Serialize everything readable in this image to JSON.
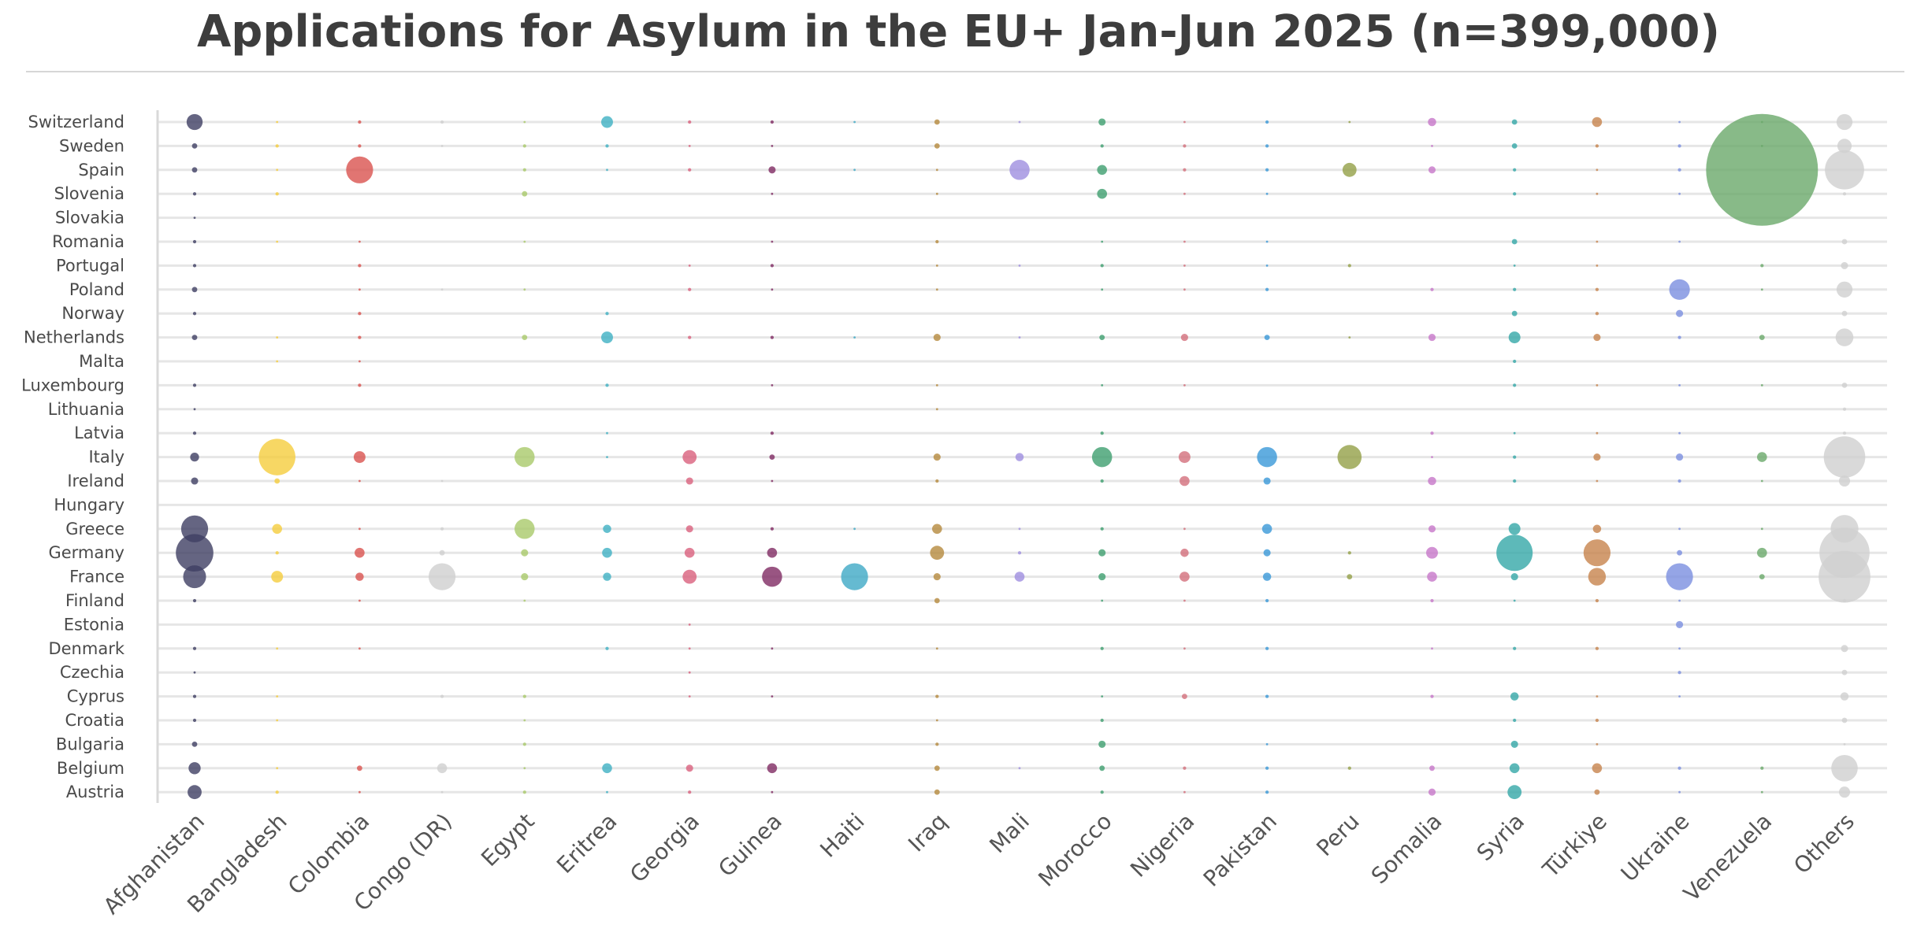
{
  "chart_data": {
    "type": "scatter",
    "title": "Applications for Asylum in the EU+ Jan-Jun 2025 (n=399,000)",
    "xlabel": "",
    "ylabel": "",
    "grid": true,
    "legend": "none",
    "size_unit": "relative bubble area (0-1, Venezuela in Spain = 1)",
    "x_categories": [
      "Afghanistan",
      "Bangladesh",
      "Colombia",
      "Congo (DR)",
      "Egypt",
      "Eritrea",
      "Georgia",
      "Guinea",
      "Haiti",
      "Iraq",
      "Mali",
      "Morocco",
      "Nigeria",
      "Pakistan",
      "Peru",
      "Somalia",
      "Syria",
      "Türkiye",
      "Ukraine",
      "Venezuela",
      "Others"
    ],
    "y_categories": [
      "Switzerland",
      "Sweden",
      "Spain",
      "Slovenia",
      "Slovakia",
      "Romania",
      "Portugal",
      "Poland",
      "Norway",
      "Netherlands",
      "Malta",
      "Luxembourg",
      "Lithuania",
      "Latvia",
      "Italy",
      "Ireland",
      "Hungary",
      "Greece",
      "Germany",
      "France",
      "Finland",
      "Estonia",
      "Denmark",
      "Czechia",
      "Cyprus",
      "Croatia",
      "Bulgaria",
      "Belgium",
      "Austria"
    ],
    "series": [
      {
        "name": "Afghanistan",
        "color": "#3f3f63",
        "values": [
          0.0205,
          0.0023,
          0.0023,
          0.0009,
          0.0002,
          0.0009,
          0.0009,
          0.0023,
          0.0009,
          0.0023,
          0,
          0.0009,
          0.0002,
          0.0009,
          0.0063,
          0.0041,
          0,
          0.0581,
          0.1125,
          0.0419,
          0.0009,
          0,
          0.0009,
          0.0002,
          0.0009,
          0.0009,
          0.0023,
          0.0117,
          0.0157
        ]
      },
      {
        "name": "Bangladesh",
        "color": "#f5cd3d",
        "values": [
          0.0002,
          0.0009,
          0.0002,
          0.0009,
          0,
          0.0002,
          0,
          0,
          0,
          0.0002,
          0.0002,
          0,
          0,
          0,
          0.107,
          0.0023,
          0,
          0.0079,
          0.0009,
          0.0111,
          0,
          0,
          0.0002,
          0,
          0.0002,
          0.0002,
          0,
          0.0002,
          0.0009
        ]
      },
      {
        "name": "Colombia",
        "color": "#d9534f",
        "values": [
          0.0009,
          0.0009,
          0.0581,
          0,
          0,
          0.0002,
          0.0009,
          0.0002,
          0.0009,
          0.0009,
          0.0002,
          0.0009,
          0,
          0,
          0.0111,
          0.0002,
          0,
          0.0002,
          0.0079,
          0.0055,
          0.0002,
          0,
          0.0002,
          0,
          0,
          0,
          0,
          0.0023,
          0.0002
        ]
      },
      {
        "name": "Congo (DR)",
        "color": "#cfcfcf",
        "values": [
          0.0009,
          0.0002,
          0,
          0,
          0,
          0,
          0,
          0.0002,
          0,
          0,
          0,
          0,
          0,
          0,
          0,
          0.0002,
          0,
          0.0009,
          0.0023,
          0.0581,
          0,
          0,
          0,
          0,
          0.0009,
          0,
          0,
          0.0079,
          0.0002
        ]
      },
      {
        "name": "Egypt",
        "color": "#a9c96a",
        "values": [
          0.0002,
          0.0009,
          0.0009,
          0.0023,
          0,
          0.0002,
          0,
          0.0002,
          0,
          0.0023,
          0,
          0,
          0,
          0,
          0.0323,
          0,
          0,
          0.0323,
          0.0041,
          0.0041,
          0.0002,
          0,
          0,
          0,
          0.0009,
          0.0002,
          0.0009,
          0.0002,
          0.0009
        ]
      },
      {
        "name": "Eritrea",
        "color": "#3fb0c3",
        "values": [
          0.0111,
          0.0009,
          0.0002,
          0,
          0,
          0,
          0,
          0,
          0.0009,
          0.0111,
          0,
          0.0009,
          0,
          0.0002,
          0.0002,
          0,
          0,
          0.0055,
          0.0079,
          0.0055,
          0,
          0,
          0.0009,
          0,
          0,
          0,
          0,
          0.0079,
          0.0002
        ]
      },
      {
        "name": "Georgia",
        "color": "#d9607d",
        "values": [
          0.0009,
          0.0002,
          0.0009,
          0,
          0,
          0,
          0.0002,
          0.0009,
          0,
          0.0009,
          0,
          0,
          0,
          0,
          0.0157,
          0.0041,
          0,
          0.0041,
          0.0079,
          0.0157,
          0,
          0.0002,
          0.0002,
          0.0002,
          0.0002,
          0,
          0,
          0.0041,
          0.0009
        ]
      },
      {
        "name": "Guinea",
        "color": "#7f2b63",
        "values": [
          0.0009,
          0.0002,
          0.0041,
          0.0002,
          0,
          0.0002,
          0.0009,
          0.0002,
          0,
          0.0009,
          0,
          0.0002,
          0,
          0.0009,
          0.0023,
          0.0002,
          0,
          0.0009,
          0.0079,
          0.0323,
          0,
          0,
          0.0002,
          0,
          0.0002,
          0,
          0,
          0.0079,
          0.0002
        ]
      },
      {
        "name": "Haiti",
        "color": "#3fa9c6",
        "values": [
          0.0002,
          0,
          0.0002,
          0,
          0,
          0,
          0,
          0,
          0,
          0.0002,
          0,
          0,
          0,
          0,
          0,
          0,
          0,
          0.0002,
          0,
          0.0581,
          0,
          0,
          0,
          0,
          0,
          0,
          0,
          0,
          0
        ]
      },
      {
        "name": "Iraq",
        "color": "#b58a3d",
        "values": [
          0.0023,
          0.0023,
          0.0002,
          0.0002,
          0,
          0.0009,
          0.0002,
          0.0002,
          0,
          0.0041,
          0,
          0.0002,
          0.0002,
          0,
          0.0041,
          0.0009,
          0,
          0.0079,
          0.0157,
          0.0041,
          0.0023,
          0,
          0.0002,
          0,
          0.0009,
          0.0002,
          0.0009,
          0.0023,
          0.0023
        ]
      },
      {
        "name": "Mali",
        "color": "#9f8fe0",
        "values": [
          0.0002,
          0,
          0.0323,
          0,
          0,
          0,
          0.0002,
          0,
          0,
          0.0002,
          0,
          0,
          0,
          0,
          0.0055,
          0,
          0,
          0.0002,
          0.0009,
          0.0079,
          0,
          0,
          0,
          0,
          0,
          0,
          0,
          0.0002,
          0
        ]
      },
      {
        "name": "Morocco",
        "color": "#3f9f6f",
        "values": [
          0.0041,
          0.0009,
          0.0079,
          0.0079,
          0,
          0.0002,
          0.0009,
          0.0002,
          0,
          0.0023,
          0,
          0.0002,
          0,
          0.0009,
          0.0323,
          0.0009,
          0,
          0.0009,
          0.0041,
          0.0041,
          0.0002,
          0,
          0.0009,
          0,
          0.0002,
          0.0009,
          0.0041,
          0.0023,
          0.0009
        ]
      },
      {
        "name": "Nigeria",
        "color": "#d36f7c",
        "values": [
          0.0002,
          0.0009,
          0.0009,
          0.0002,
          0,
          0.0002,
          0.0002,
          0.0002,
          0,
          0.0041,
          0,
          0.0002,
          0,
          0,
          0.0111,
          0.0079,
          0,
          0.0002,
          0.0055,
          0.0079,
          0.0002,
          0,
          0.0002,
          0,
          0.0023,
          0,
          0,
          0.0009,
          0.0002
        ]
      },
      {
        "name": "Pakistan",
        "color": "#3a98d8",
        "values": [
          0.0009,
          0.0009,
          0.0009,
          0.0002,
          0,
          0.0002,
          0.0002,
          0.0009,
          0,
          0.0023,
          0,
          0,
          0,
          0,
          0.0323,
          0.0041,
          0,
          0.0079,
          0.0041,
          0.0055,
          0.0009,
          0,
          0.0009,
          0,
          0.0009,
          0,
          0.0002,
          0.0009,
          0.0009
        ]
      },
      {
        "name": "Peru",
        "color": "#94a047",
        "values": [
          0.0002,
          0,
          0.0157,
          0,
          0,
          0,
          0.0009,
          0,
          0,
          0.0002,
          0,
          0,
          0,
          0,
          0.0465,
          0,
          0,
          0,
          0.0009,
          0.0023,
          0,
          0,
          0,
          0,
          0,
          0,
          0,
          0.0009,
          0
        ]
      },
      {
        "name": "Somalia",
        "color": "#c777c9",
        "values": [
          0.0055,
          0.0002,
          0.0041,
          0,
          0,
          0,
          0,
          0.0009,
          0,
          0.0041,
          0,
          0,
          0,
          0.0009,
          0.0002,
          0.0055,
          0,
          0.0041,
          0.0111,
          0.0079,
          0.0009,
          0,
          0.0002,
          0,
          0.0009,
          0,
          0,
          0.0023,
          0.0041
        ]
      },
      {
        "name": "Syria",
        "color": "#35a8a8",
        "values": [
          0.0023,
          0.0023,
          0.0009,
          0.0009,
          0,
          0.0023,
          0.0002,
          0.0009,
          0.0023,
          0.0111,
          0.0009,
          0.0009,
          0,
          0.0002,
          0.0009,
          0.0009,
          0,
          0.0111,
          0.105,
          0.0041,
          0.0002,
          0,
          0.0009,
          0,
          0.0055,
          0.0009,
          0.0041,
          0.0079,
          0.0157
        ]
      },
      {
        "name": "Türkiye",
        "color": "#c7834c",
        "values": [
          0.0079,
          0.0009,
          0.0002,
          0.0002,
          0,
          0.0002,
          0.0002,
          0.0009,
          0.0009,
          0.0041,
          0,
          0.0002,
          0,
          0.0002,
          0.0041,
          0.0002,
          0,
          0.0055,
          0.0581,
          0.0249,
          0.0009,
          0,
          0.0009,
          0,
          0.0002,
          0.0009,
          0.0002,
          0.0079,
          0.0023
        ]
      },
      {
        "name": "Ukraine",
        "color": "#7b8fe0",
        "values": [
          0.0002,
          0.0009,
          0.0009,
          0.0002,
          0,
          0.0002,
          0,
          0.0341,
          0.0041,
          0.0009,
          0,
          0.0002,
          0,
          0.0002,
          0.0041,
          0.0009,
          0,
          0.0002,
          0.0023,
          0.0581,
          0.0002,
          0.0041,
          0.0002,
          0.0009,
          0.0002,
          0,
          0,
          0.0009,
          0.0002
        ]
      },
      {
        "name": "Venezuela",
        "color": "#6aa96a",
        "values": [
          0.0002,
          0.0002,
          1.0,
          0,
          0,
          0,
          0.0009,
          0.0002,
          0,
          0.0023,
          0,
          0.0002,
          0,
          0,
          0.0079,
          0.0002,
          0,
          0.0002,
          0.0079,
          0.0023,
          0,
          0,
          0,
          0,
          0,
          0,
          0,
          0.0009,
          0.0002
        ]
      },
      {
        "name": "Others",
        "color": "#cfcfcf",
        "values": [
          0.0204,
          0.0164,
          0.1228,
          0.0009,
          0,
          0.0023,
          0.0041,
          0.0204,
          0.0023,
          0.0253,
          0,
          0.0023,
          0.0009,
          0.0009,
          0.1376,
          0.0099,
          0,
          0.0616,
          0.201,
          0.214,
          0.0009,
          0,
          0.0041,
          0.0023,
          0.0055,
          0.0023,
          0.0002,
          0.0561,
          0.0099
        ]
      }
    ]
  }
}
